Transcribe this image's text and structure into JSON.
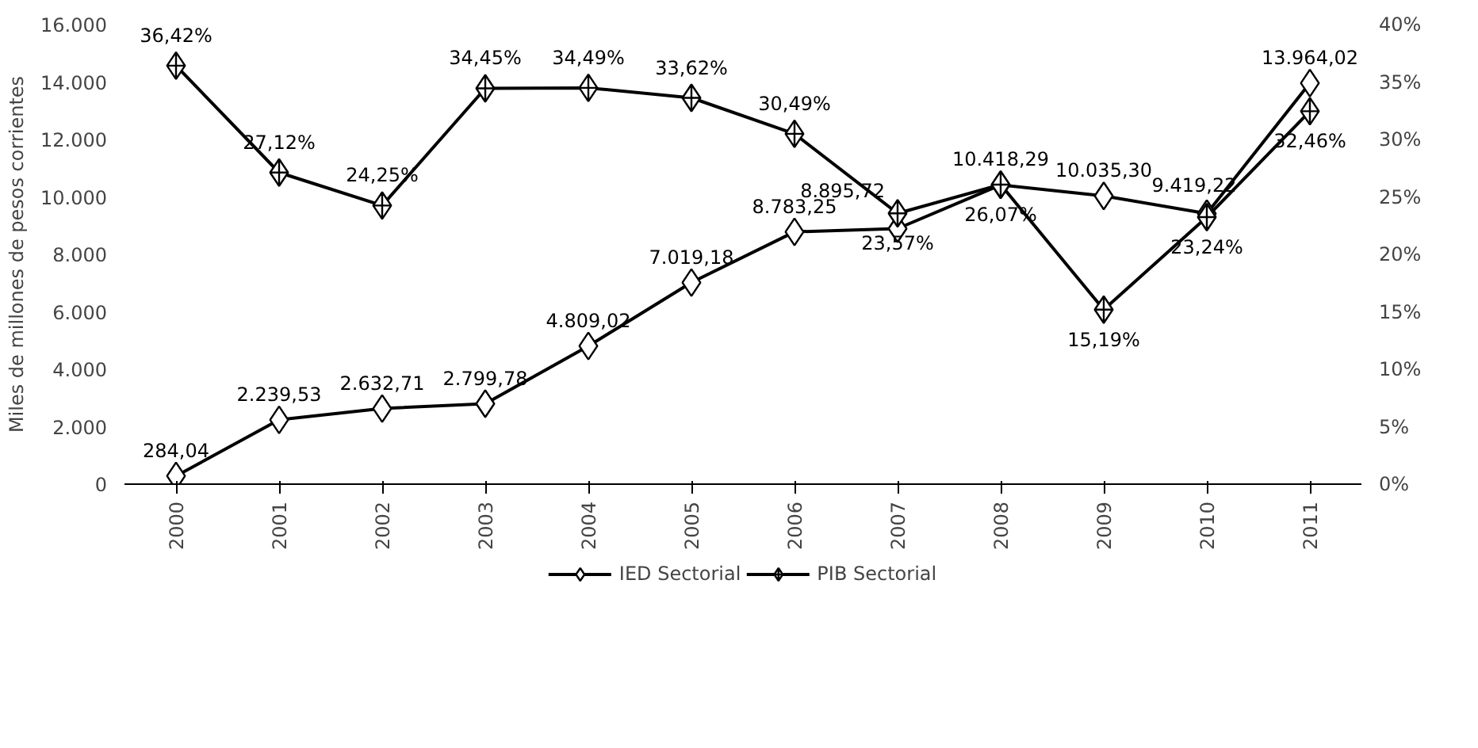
{
  "chart_data": {
    "type": "line",
    "ylabel": "Miles de millones de pesos corrientes",
    "categories": [
      "2000",
      "2001",
      "2002",
      "2003",
      "2004",
      "2005",
      "2006",
      "2007",
      "2008",
      "2009",
      "2010",
      "2011"
    ],
    "ylim": [
      0,
      16000
    ],
    "yticks": [
      {
        "value": 0,
        "label": "0"
      },
      {
        "value": 2000,
        "label": "2.000"
      },
      {
        "value": 4000,
        "label": "4.000"
      },
      {
        "value": 6000,
        "label": "6.000"
      },
      {
        "value": 8000,
        "label": "8.000"
      },
      {
        "value": 10000,
        "label": "10.000"
      },
      {
        "value": 12000,
        "label": "12.000"
      },
      {
        "value": 14000,
        "label": "14.000"
      },
      {
        "value": 16000,
        "label": "16.000"
      }
    ],
    "y2lim": [
      0,
      40
    ],
    "y2ticks": [
      {
        "value": 0,
        "label": "0%"
      },
      {
        "value": 5,
        "label": "5%"
      },
      {
        "value": 10,
        "label": "10%"
      },
      {
        "value": 15,
        "label": "15%"
      },
      {
        "value": 20,
        "label": "20%"
      },
      {
        "value": 25,
        "label": "25%"
      },
      {
        "value": 30,
        "label": "30%"
      },
      {
        "value": 35,
        "label": "35%"
      },
      {
        "value": 40,
        "label": "40%"
      }
    ],
    "series": [
      {
        "name": "IED Sectorial",
        "color": "#000000",
        "marker": "diamond",
        "values": [
          284.04,
          2239.53,
          2632.71,
          2799.78,
          4809.02,
          7019.18,
          8783.25,
          8895.72,
          10418.29,
          10035.3,
          9419.22,
          13964.02
        ],
        "value_labels": [
          "284,04",
          "2.239,53",
          "2.632,71",
          "2.799,78",
          "4.809,02",
          "7.019,18",
          "8.783,25",
          "8.895,72",
          "10.418,29",
          "10.035,30",
          "9.419,22",
          "13.964,02"
        ]
      },
      {
        "name": "PIB Sectorial",
        "color": "#000000",
        "marker": "cross",
        "axis": "y2",
        "values": [
          36.42,
          27.12,
          24.25,
          34.45,
          34.49,
          33.62,
          30.49,
          23.57,
          26.07,
          15.19,
          23.24,
          32.46
        ],
        "value_labels": [
          "36,42%",
          "27,12%",
          "24,25%",
          "34,45%",
          "34,49%",
          "33,62%",
          "30,49%",
          "23,57%",
          "26,07%",
          "15,19%",
          "23,24%",
          "32,46%"
        ]
      }
    ],
    "legend": "bottom",
    "grid": false,
    "line_style": "solid"
  }
}
